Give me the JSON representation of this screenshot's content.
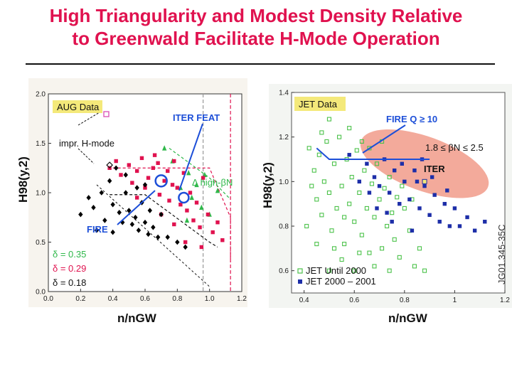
{
  "slide": {
    "title_line1": "High Triangularity and Modest Density Relative",
    "title_line2": "to Greenwald Facilitate H-Mode Operation"
  },
  "colors": {
    "title": "#e0124f",
    "aug_box": "#f4e97a",
    "delta_035": "#2fb84a",
    "delta_029": "#e0124f",
    "delta_018": "#000000",
    "jet_old": "#4cc24a",
    "jet_new": "#1d2ea8",
    "fire_line": "#1d4fd8",
    "iter_ellipse": "#f19b8a"
  },
  "chart_data": [
    {
      "type": "scatter",
      "title": "AUG Data",
      "xlabel": "n/nGW",
      "ylabel": "H98(y,2)",
      "xlim": [
        0.0,
        1.2
      ],
      "ylim": [
        0.0,
        2.0
      ],
      "xticks": [
        "0.0",
        "0.2",
        "0.4",
        "0.6",
        "0.8",
        "1.0",
        "1.2"
      ],
      "yticks": [
        "0.0",
        "0.5",
        "1.0",
        "1.5",
        "2.0"
      ],
      "annotations": {
        "impr": "impr. H-mode",
        "iter_feat": "ITER FEAT",
        "fire": "FIRE",
        "high_beta": "Δ high-βN"
      },
      "legend": [
        "δ = 0.35",
        "δ = 0.29",
        "δ = 0.18"
      ],
      "iter_point": [
        0.84,
        0.95
      ],
      "fire_point": [
        0.7,
        1.12
      ],
      "series": [
        {
          "name": "δ = 0.35",
          "color": "#2fb84a",
          "marker": "triangle",
          "points": [
            [
              0.72,
              1.45
            ],
            [
              0.77,
              1.32
            ],
            [
              0.82,
              1.05
            ],
            [
              0.87,
              1.2
            ],
            [
              0.89,
              0.95
            ],
            [
              0.92,
              1.08
            ],
            [
              0.95,
              0.85
            ],
            [
              0.97,
              1.18
            ],
            [
              1.0,
              0.78
            ],
            [
              1.05,
              1.02
            ],
            [
              0.86,
              0.72
            ]
          ]
        },
        {
          "name": "δ = 0.29",
          "color": "#e0124f",
          "marker": "square",
          "points": [
            [
              0.38,
              1.25
            ],
            [
              0.42,
              1.32
            ],
            [
              0.45,
              1.18
            ],
            [
              0.5,
              1.28
            ],
            [
              0.52,
              1.1
            ],
            [
              0.55,
              1.22
            ],
            [
              0.58,
              1.35
            ],
            [
              0.6,
              1.05
            ],
            [
              0.62,
              1.15
            ],
            [
              0.65,
              1.25
            ],
            [
              0.66,
              1.38
            ],
            [
              0.68,
              1.3
            ],
            [
              0.69,
              0.98
            ],
            [
              0.72,
              1.12
            ],
            [
              0.74,
              1.22
            ],
            [
              0.75,
              0.92
            ],
            [
              0.77,
              1.08
            ],
            [
              0.78,
              1.32
            ],
            [
              0.8,
              1.05
            ],
            [
              0.82,
              0.88
            ],
            [
              0.84,
              1.2
            ],
            [
              0.86,
              0.82
            ],
            [
              0.88,
              1.0
            ],
            [
              0.9,
              0.72
            ],
            [
              0.92,
              0.9
            ],
            [
              0.94,
              0.65
            ],
            [
              0.96,
              1.15
            ],
            [
              0.99,
              0.78
            ],
            [
              1.02,
              0.6
            ],
            [
              1.05,
              0.7
            ],
            [
              1.08,
              0.52
            ],
            [
              0.55,
              0.95
            ],
            [
              0.7,
              0.78
            ],
            [
              0.78,
              0.68
            ],
            [
              0.85,
              0.5
            ],
            [
              0.95,
              0.45
            ]
          ]
        },
        {
          "name": "δ = 0.18",
          "color": "#000000",
          "marker": "diamond",
          "points": [
            [
              0.2,
              0.78
            ],
            [
              0.25,
              0.95
            ],
            [
              0.28,
              0.85
            ],
            [
              0.3,
              0.62
            ],
            [
              0.35,
              0.72
            ],
            [
              0.38,
              1.12
            ],
            [
              0.4,
              0.88
            ],
            [
              0.42,
              1.25
            ],
            [
              0.44,
              0.8
            ],
            [
              0.46,
              0.7
            ],
            [
              0.48,
              1.0
            ],
            [
              0.5,
              0.82
            ],
            [
              0.52,
              0.68
            ],
            [
              0.54,
              0.75
            ],
            [
              0.55,
              1.05
            ],
            [
              0.56,
              0.62
            ],
            [
              0.58,
              0.9
            ],
            [
              0.6,
              0.7
            ],
            [
              0.62,
              0.58
            ],
            [
              0.63,
              0.82
            ],
            [
              0.65,
              0.65
            ],
            [
              0.68,
              0.55
            ],
            [
              0.7,
              0.78
            ],
            [
              0.74,
              0.55
            ],
            [
              0.8,
              0.5
            ],
            [
              0.85,
              0.45
            ],
            [
              0.33,
              1.0
            ],
            [
              0.48,
              1.18
            ],
            [
              0.6,
              1.08
            ],
            [
              0.4,
              0.6
            ]
          ]
        }
      ]
    },
    {
      "type": "scatter",
      "title": "JET Data",
      "xlabel": "n/nGW",
      "ylabel": "H98(y,2)",
      "xlim": [
        0.35,
        1.2
      ],
      "ylim": [
        0.5,
        1.4
      ],
      "xticks": [
        "0.4",
        "0.6",
        "0.8",
        "1",
        "1.2"
      ],
      "yticks": [
        "0.6",
        "0.8",
        "1.0",
        "1.2",
        "1.4"
      ],
      "annotations": {
        "fire_q": "FIRE Q ≥ 10",
        "beta_range": "1.8 ≤ βN ≤ 2.5",
        "iter": "ITER",
        "corner_id": "JG01.345-35C"
      },
      "fire_curve": [
        [
          0.45,
          1.15
        ],
        [
          0.5,
          1.1
        ],
        [
          0.6,
          1.1
        ],
        [
          0.7,
          1.1
        ],
        [
          0.8,
          1.1
        ],
        [
          0.9,
          1.1
        ]
      ],
      "iter_ellipse": {
        "center": [
          0.88,
          1.08
        ],
        "angle_deg": -20
      },
      "series": [
        {
          "name": "JET Until 2000",
          "color": "#4cc24a",
          "marker": "square-open",
          "points": [
            [
              0.42,
              1.15
            ],
            [
              0.44,
              1.05
            ],
            [
              0.45,
              0.92
            ],
            [
              0.46,
              1.12
            ],
            [
              0.47,
              0.85
            ],
            [
              0.48,
              1.0
            ],
            [
              0.49,
              1.18
            ],
            [
              0.5,
              0.95
            ],
            [
              0.51,
              0.78
            ],
            [
              0.52,
              1.08
            ],
            [
              0.53,
              0.88
            ],
            [
              0.54,
              1.2
            ],
            [
              0.55,
              0.98
            ],
            [
              0.56,
              0.72
            ],
            [
              0.57,
              1.1
            ],
            [
              0.58,
              0.9
            ],
            [
              0.59,
              1.02
            ],
            [
              0.6,
              0.82
            ],
            [
              0.61,
              1.14
            ],
            [
              0.62,
              0.95
            ],
            [
              0.63,
              0.76
            ],
            [
              0.64,
              1.05
            ],
            [
              0.65,
              0.88
            ],
            [
              0.66,
              0.68
            ],
            [
              0.67,
              0.99
            ],
            [
              0.68,
              0.84
            ],
            [
              0.69,
              1.08
            ],
            [
              0.7,
              0.92
            ],
            [
              0.71,
              0.7
            ],
            [
              0.72,
              0.97
            ],
            [
              0.73,
              0.8
            ],
            [
              0.74,
              1.02
            ],
            [
              0.75,
              0.86
            ],
            [
              0.76,
              0.74
            ],
            [
              0.77,
              0.93
            ],
            [
              0.78,
              0.66
            ],
            [
              0.8,
              0.88
            ],
            [
              0.82,
              0.78
            ],
            [
              0.84,
              0.62
            ],
            [
              0.86,
              0.7
            ],
            [
              0.43,
              0.98
            ],
            [
              0.47,
              1.22
            ],
            [
              0.52,
              0.7
            ],
            [
              0.58,
              1.24
            ],
            [
              0.63,
              1.18
            ],
            [
              0.68,
              0.62
            ],
            [
              0.74,
              0.6
            ],
            [
              0.79,
              0.98
            ],
            [
              0.41,
              0.8
            ],
            [
              0.45,
              0.72
            ],
            [
              0.5,
              1.28
            ],
            [
              0.55,
              0.65
            ],
            [
              0.6,
              0.6
            ],
            [
              0.66,
              1.15
            ],
            [
              0.71,
              1.18
            ],
            [
              0.5,
              0.6
            ],
            [
              0.88,
              0.6
            ],
            [
              0.83,
              0.92
            ],
            [
              0.56,
              0.84
            ],
            [
              0.62,
              0.68
            ]
          ]
        },
        {
          "name": "JET 2000 – 2001",
          "color": "#1d2ea8",
          "marker": "square-filled",
          "points": [
            [
              0.58,
              1.12
            ],
            [
              0.62,
              1.0
            ],
            [
              0.65,
              1.08
            ],
            [
              0.68,
              1.02
            ],
            [
              0.7,
              0.98
            ],
            [
              0.72,
              1.1
            ],
            [
              0.74,
              0.95
            ],
            [
              0.76,
              1.05
            ],
            [
              0.78,
              0.9
            ],
            [
              0.8,
              1.0
            ],
            [
              0.82,
              0.92
            ],
            [
              0.84,
              1.05
            ],
            [
              0.86,
              0.88
            ],
            [
              0.88,
              0.98
            ],
            [
              0.9,
              0.85
            ],
            [
              0.92,
              0.94
            ],
            [
              0.94,
              0.82
            ],
            [
              0.96,
              0.9
            ],
            [
              0.98,
              0.8
            ],
            [
              1.0,
              0.88
            ],
            [
              1.02,
              0.8
            ],
            [
              1.05,
              0.84
            ],
            [
              1.08,
              0.78
            ],
            [
              1.12,
              0.82
            ],
            [
              0.66,
              0.95
            ],
            [
              0.73,
              0.86
            ],
            [
              0.79,
              1.08
            ],
            [
              0.85,
              1.0
            ],
            [
              0.91,
              1.02
            ],
            [
              0.97,
              0.96
            ],
            [
              0.69,
              0.88
            ],
            [
              0.75,
              0.82
            ],
            [
              0.83,
              0.78
            ],
            [
              0.87,
              1.1
            ]
          ]
        }
      ],
      "legend": [
        "JET Until 2000",
        "JET 2000 – 2001"
      ]
    }
  ]
}
